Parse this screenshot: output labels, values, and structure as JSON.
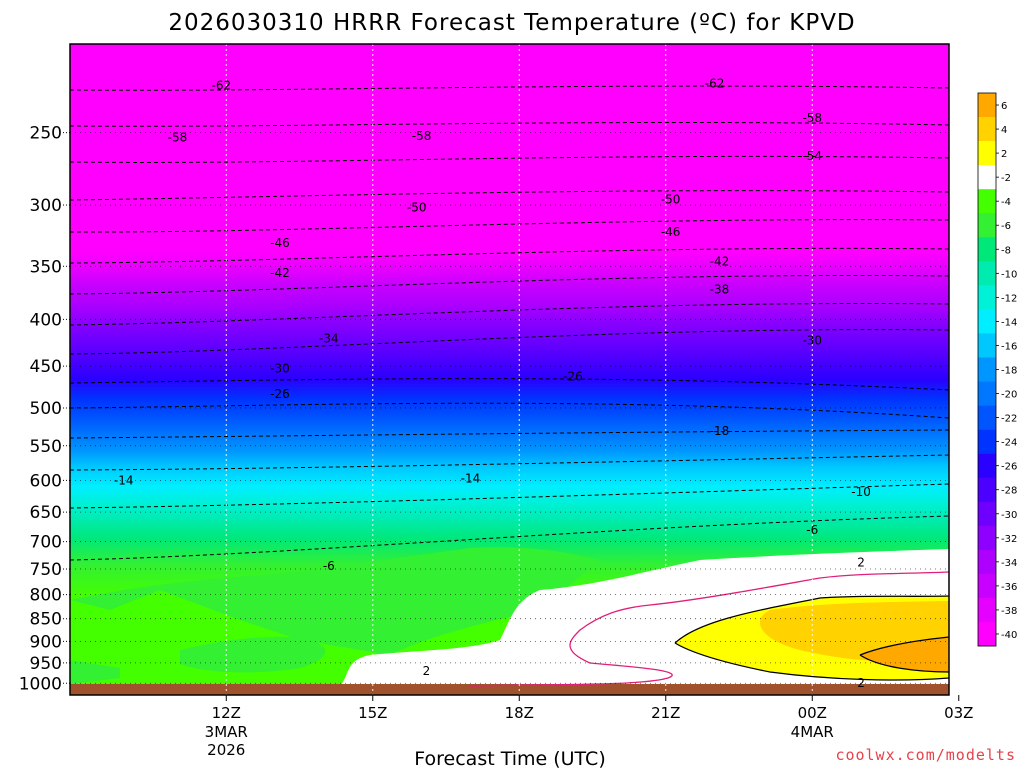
{
  "chart_data": {
    "type": "heatmap",
    "title": "2026030310 HRRR Forecast Temperature (ºC) for KPVD",
    "xlabel": "Forecast Time (UTC)",
    "ylabel": "",
    "credit": "coolwx.com/modelts",
    "grid": true,
    "legend": "right",
    "y_axis": {
      "type": "pressure",
      "ticks": [
        "250",
        "300",
        "350",
        "400",
        "450",
        "500",
        "550",
        "600",
        "650",
        "700",
        "750",
        "800",
        "850",
        "900",
        "950",
        "1000"
      ],
      "ylim": [
        1030,
        200
      ]
    },
    "x_axis": {
      "unit": "hours from 3MAR 12Z",
      "xlim": [
        -3.2,
        14.8
      ],
      "ticks": [
        {
          "label": "12Z",
          "date": "3MAR",
          "year": "2026"
        },
        {
          "label": "15Z",
          "date": "",
          "year": ""
        },
        {
          "label": "18Z",
          "date": "",
          "year": ""
        },
        {
          "label": "21Z",
          "date": "",
          "year": ""
        },
        {
          "label": "00Z",
          "date": "4MAR",
          "year": ""
        },
        {
          "label": "03Z",
          "date": "",
          "year": ""
        }
      ],
      "tick_hours": [
        0,
        3,
        6,
        9,
        12,
        15
      ]
    },
    "colorbar": {
      "levels": [
        "6",
        "4",
        "2",
        "-2",
        "-4",
        "-6",
        "-8",
        "-10",
        "-12",
        "-14",
        "-16",
        "-18",
        "-20",
        "-22",
        "-24",
        "-26",
        "-28",
        "-30",
        "-32",
        "-34",
        "-36",
        "-38",
        "-40"
      ],
      "colors": [
        "#ffa800",
        "#ffd200",
        "#ffff00",
        "#ffffff",
        "#44ff00",
        "#33f033",
        "#00e879",
        "#00ebaf",
        "#00f0d8",
        "#00eeff",
        "#00c8ff",
        "#0096ff",
        "#0077ff",
        "#0055ff",
        "#0033ff",
        "#2a00ff",
        "#4c00ff",
        "#6d00ff",
        "#8d00ff",
        "#ad00ff",
        "#c800ff",
        "#e600ff",
        "#ff00ff"
      ]
    },
    "contour_labels": [
      {
        "text": "-62",
        "hour": -0.1,
        "p": 222
      },
      {
        "text": "-62",
        "hour": 10,
        "p": 221
      },
      {
        "text": "-58",
        "hour": -1.0,
        "p": 253
      },
      {
        "text": "-58",
        "hour": 4.0,
        "p": 252
      },
      {
        "text": "-58",
        "hour": 12,
        "p": 241
      },
      {
        "text": "-54",
        "hour": 12,
        "p": 265
      },
      {
        "text": "-50",
        "hour": 3.9,
        "p": 302
      },
      {
        "text": "-50",
        "hour": 9.1,
        "p": 296
      },
      {
        "text": "-46",
        "hour": 1.1,
        "p": 330
      },
      {
        "text": "-46",
        "hour": 9.1,
        "p": 321
      },
      {
        "text": "-42",
        "hour": 1.1,
        "p": 356
      },
      {
        "text": "-42",
        "hour": 10.1,
        "p": 346
      },
      {
        "text": "-38",
        "hour": 10.1,
        "p": 371
      },
      {
        "text": "-34",
        "hour": 2.1,
        "p": 420
      },
      {
        "text": "-30",
        "hour": 1.1,
        "p": 453
      },
      {
        "text": "-30",
        "hour": 12,
        "p": 422
      },
      {
        "text": "-26",
        "hour": 1.1,
        "p": 483
      },
      {
        "text": "-26",
        "hour": 7.1,
        "p": 462
      },
      {
        "text": "-18",
        "hour": 10.1,
        "p": 530
      },
      {
        "text": "-14",
        "hour": -2.1,
        "p": 600
      },
      {
        "text": "-14",
        "hour": 5.0,
        "p": 597
      },
      {
        "text": "-10",
        "hour": 13.0,
        "p": 618
      },
      {
        "text": "-6",
        "hour": 2.1,
        "p": 744
      },
      {
        "text": "-6",
        "hour": 12.0,
        "p": 680
      },
      {
        "text": "2",
        "hour": 13.0,
        "p": 738
      },
      {
        "text": "2",
        "hour": 4.1,
        "p": 970
      },
      {
        "text": "2",
        "hour": 13.0,
        "p": 999
      }
    ]
  }
}
